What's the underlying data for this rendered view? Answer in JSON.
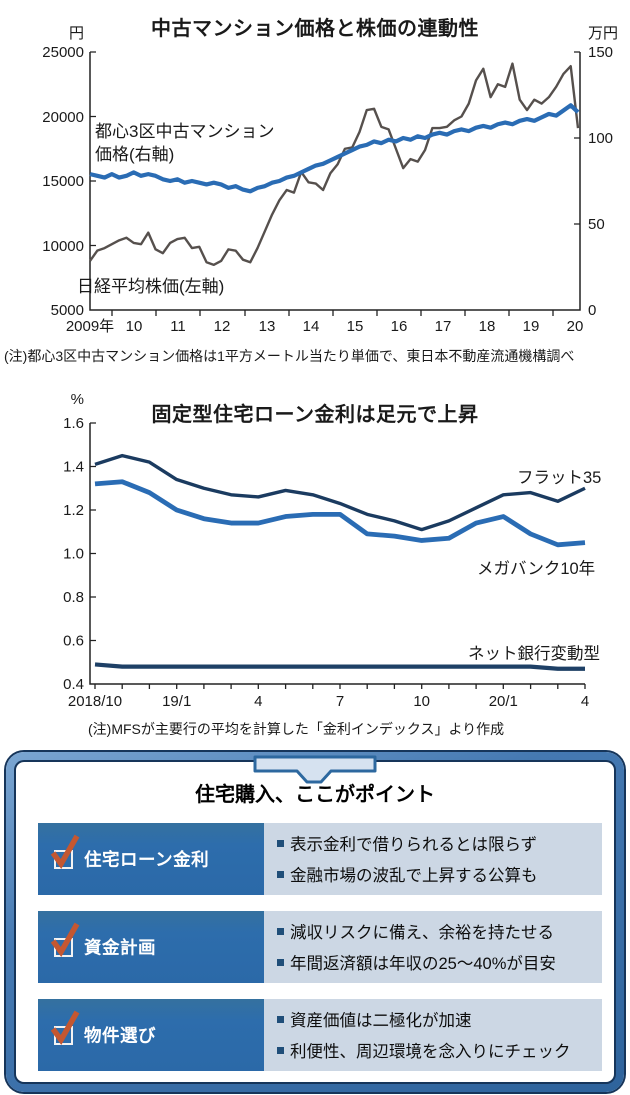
{
  "ui": {
    "chart1_series1_label_l1": "都心3区中古マンション",
    "chart1_series1_label_l2": "価格(右軸)",
    "chart1_series2_label": "日経平均株価(左軸)"
  },
  "colors": {
    "line_blue": "#2a6cb4",
    "line_gray": "#56504d",
    "line_navy": "#1b3b60",
    "line_netbank": "#1e4066",
    "axis": "#222222",
    "panel_frame_dark": "#16355a",
    "row_label_bg": "#2d6dac",
    "row_points_bg": "#ccd7e4",
    "check_red": "#c45731",
    "bullet_navy": "#1f4e79",
    "clip_fill": "#d6e2f0",
    "clip_stroke": "#2d689f"
  },
  "chart_data": [
    {
      "type": "line",
      "title": "中古マンション価格と株価の連動性",
      "x_start": "2009/1",
      "x_end": "2020/3",
      "x_point_interval": "2 months",
      "x_tick_labels": [
        "2009年",
        "10",
        "11",
        "12",
        "13",
        "14",
        "15",
        "16",
        "17",
        "18",
        "19",
        "20"
      ],
      "y_left": {
        "unit": "円",
        "range": [
          5000,
          25000
        ],
        "ticks": [
          25000,
          20000,
          15000,
          10000,
          5000
        ]
      },
      "y_right": {
        "unit": "万円",
        "range": [
          0,
          150
        ],
        "ticks": [
          150,
          100,
          50,
          0
        ]
      },
      "grid": false,
      "series": [
        {
          "name": "日経平均株価(左軸)",
          "axis": "left",
          "color": "#56504d",
          "values": [
            8800,
            9600,
            9800,
            10100,
            10400,
            10600,
            10200,
            10100,
            11000,
            9700,
            9400,
            10200,
            10500,
            10600,
            9800,
            9900,
            8700,
            8500,
            8800,
            9700,
            9600,
            8900,
            8700,
            9800,
            11100,
            12400,
            13500,
            14300,
            14100,
            15700,
            14900,
            14800,
            14300,
            15600,
            16300,
            17500,
            17600,
            18800,
            20500,
            20600,
            19200,
            19000,
            17500,
            16000,
            16700,
            16500,
            17400,
            19100,
            19100,
            19200,
            19700,
            20000,
            21000,
            22800,
            23700,
            21500,
            22500,
            22300,
            24100,
            21300,
            20500,
            21300,
            21000,
            21500,
            22300,
            23300,
            23900,
            19100
          ]
        },
        {
          "name": "都心3区中古マンション価格(右軸)",
          "axis": "right",
          "color": "#2a6cb4",
          "values": [
            79,
            78,
            77,
            79,
            77,
            78,
            80,
            78,
            79,
            78,
            76,
            75,
            76,
            74,
            75,
            74,
            73,
            74,
            73,
            71,
            72,
            70,
            69,
            71,
            72,
            74,
            75,
            77,
            78,
            80,
            82,
            84,
            85,
            87,
            89,
            91,
            93,
            95,
            96,
            98,
            97,
            99,
            98,
            100,
            99,
            101,
            100,
            102,
            103,
            102,
            104,
            105,
            104,
            106,
            107,
            106,
            108,
            109,
            108,
            110,
            111,
            110,
            112,
            114,
            113,
            116,
            119,
            115
          ]
        }
      ],
      "note": "(注)都心3区中古マンション価格は1平方メートル当たり単価で、東日本不動産流通機構調べ"
    },
    {
      "type": "line",
      "title": "固定型住宅ローン金利は足元で上昇",
      "x": [
        "2018/10",
        "2018/11",
        "2018/12",
        "2019/1",
        "2019/2",
        "2019/3",
        "2019/4",
        "2019/5",
        "2019/6",
        "2019/7",
        "2019/8",
        "2019/9",
        "2019/10",
        "2019/11",
        "2019/12",
        "2020/1",
        "2020/2",
        "2020/3",
        "2020/4"
      ],
      "x_tick_labels": [
        "2018/10",
        "19/1",
        "4",
        "7",
        "10",
        "20/1",
        "4"
      ],
      "ylabel": "%",
      "ylim": [
        0.4,
        1.6
      ],
      "y_ticks": [
        "1.6",
        "1.4",
        "1.2",
        "1.0",
        "0.8",
        "0.6",
        "0.4"
      ],
      "grid": false,
      "series": [
        {
          "name": "フラット35",
          "color": "#1b3b60",
          "values": [
            1.41,
            1.45,
            1.42,
            1.34,
            1.3,
            1.27,
            1.26,
            1.29,
            1.27,
            1.23,
            1.18,
            1.15,
            1.11,
            1.15,
            1.21,
            1.27,
            1.28,
            1.24,
            1.3
          ]
        },
        {
          "name": "メガバンク10年",
          "color": "#2a6cb4",
          "values": [
            1.32,
            1.33,
            1.28,
            1.2,
            1.16,
            1.14,
            1.14,
            1.17,
            1.18,
            1.18,
            1.09,
            1.08,
            1.06,
            1.07,
            1.14,
            1.17,
            1.09,
            1.04,
            1.05
          ]
        },
        {
          "name": "ネット銀行変動型",
          "color": "#1e4066",
          "values": [
            0.49,
            0.48,
            0.48,
            0.48,
            0.48,
            0.48,
            0.48,
            0.48,
            0.48,
            0.48,
            0.48,
            0.48,
            0.48,
            0.48,
            0.48,
            0.48,
            0.48,
            0.47,
            0.47
          ]
        }
      ],
      "note": "(注)MFSが主要行の平均を計算した「金利インデックス」より作成"
    }
  ],
  "panel": {
    "title": "住宅購入、ここがポイント",
    "rows": [
      {
        "label": "住宅ローン金利",
        "points": [
          "表示金利で借りられるとは限らず",
          "金融市場の波乱で上昇する公算も"
        ]
      },
      {
        "label": "資金計画",
        "points": [
          "減収リスクに備え、余裕を持たせる",
          "年間返済額は年収の25〜40%が目安"
        ]
      },
      {
        "label": "物件選び",
        "points": [
          "資産価値は二極化が加速",
          "利便性、周辺環境を念入りにチェック"
        ]
      }
    ]
  }
}
